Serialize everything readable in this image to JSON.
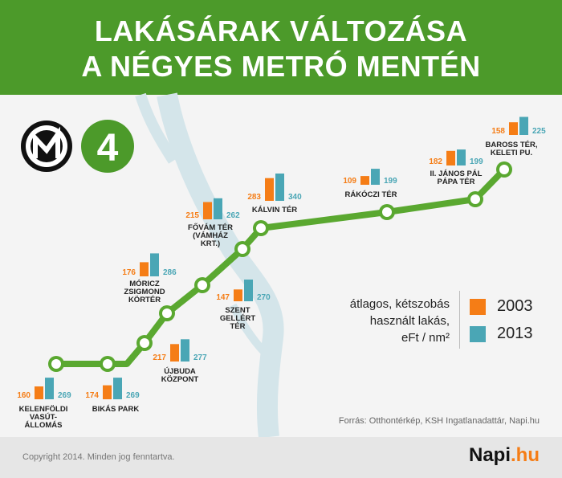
{
  "header": {
    "title_line1": "LAKÁSÁRAK VÁLTOZÁSA",
    "title_line2": "A NÉGYES METRÓ MENTÉN"
  },
  "badge": {
    "line_number": "4"
  },
  "chart_data": {
    "type": "bar",
    "title": "LAKÁSÁRAK VÁLTOZÁSA A NÉGYES METRÓ MENTÉN",
    "categories": [
      "KELENFÖLDI VASÚT-ÁLLOMÁS",
      "BIKÁS PARK",
      "ÚJBUDA KÖZPONT",
      "MÓRICZ ZSIGMOND KÖRTÉR",
      "SZENT GELLÉRT TÉR",
      "FŐVÁM TÉR (VÁMHÁZ KRT.)",
      "KÁLVIN TÉR",
      "RÁKÓCZI TÉR",
      "II. JÁNOS PÁL PÁPA TÉR",
      "BAROSS TÉR, KELETI PU."
    ],
    "category_lines": [
      [
        "KELENFÖLDI",
        "VASÚT-",
        "ÁLLOMÁS"
      ],
      [
        "BIKÁS PARK"
      ],
      [
        "ÚJBUDA",
        "KÖZPONT"
      ],
      [
        "MÓRICZ",
        "ZSIGMOND",
        "KÖRTÉR"
      ],
      [
        "SZENT",
        "GELLÉRT",
        "TÉR"
      ],
      [
        "FŐVÁM TÉR",
        "(VÁMHÁZ",
        "KRT.)"
      ],
      [
        "KÁLVIN TÉR"
      ],
      [
        "RÁKÓCZI TÉR"
      ],
      [
        "II. JÁNOS PÁL",
        "PÁPA TÉR"
      ],
      [
        "BAROSS TÉR,",
        "KELETI PU."
      ]
    ],
    "series": [
      {
        "name": "2003",
        "color": "#f57d16",
        "values": [
          160,
          174,
          217,
          176,
          147,
          215,
          283,
          109,
          182,
          158
        ]
      },
      {
        "name": "2013",
        "color": "#4aa6b5",
        "values": [
          269,
          269,
          277,
          286,
          270,
          262,
          340,
          199,
          199,
          225
        ]
      }
    ],
    "unit": "eFt / nm²",
    "legend_position": "bottom-right"
  },
  "legend": {
    "description_lines": [
      "átlagos, kétszobás",
      "használt lakás,",
      "eFt / nm²"
    ]
  },
  "source": "Forrás: Otthontérkép, KSH Ingatlanadattár, Napi.hu",
  "footer": {
    "copyright": "Copyright 2014. Minden jog fenntartva.",
    "brand_main": "Napi",
    "brand_suffix": ".hu"
  },
  "colors": {
    "header_bg": "#4c9a2a",
    "metro_line": "#5aa830",
    "river": "#d4e5ea",
    "bar_2003": "#f57d16",
    "bar_2013": "#4aa6b5"
  }
}
